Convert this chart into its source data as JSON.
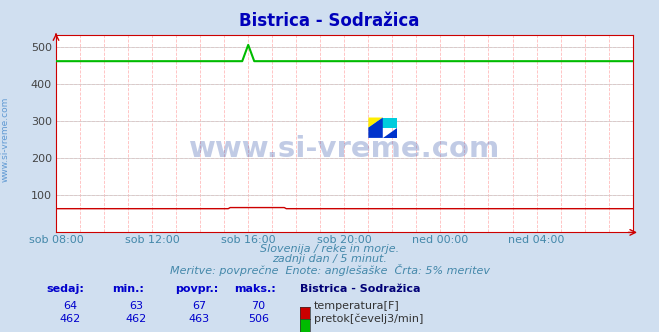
{
  "title": "Bistrica - Sodražica",
  "title_color": "#0000bb",
  "bg_color": "#d0dff0",
  "plot_bg_color": "#ffffff",
  "xlabel_color": "#4488aa",
  "ylabel_ticks": [
    100,
    200,
    300,
    400,
    500
  ],
  "ylim": [
    0,
    533
  ],
  "x_tick_labels": [
    "sob 08:00",
    "sob 12:00",
    "sob 16:00",
    "sob 20:00",
    "ned 00:00",
    "ned 04:00"
  ],
  "x_tick_positions": [
    0,
    4,
    8,
    12,
    16,
    20
  ],
  "subtitle1": "Slovenija / reke in morje.",
  "subtitle2": "zadnji dan / 5 minut.",
  "subtitle3": "Meritve: povprečne  Enote: anglešaške  Črta: 5% meritev",
  "subtitle_color": "#4488aa",
  "watermark": "www.si-vreme.com",
  "watermark_color": "#4488cc",
  "side_label": "www.si-vreme.com",
  "temp_color": "#cc0000",
  "flow_color": "#00bb00",
  "temp_base": 64,
  "flow_base": 462,
  "flow_spike_val": 506,
  "legend_sedaj_label": "sedaj:",
  "legend_min_label": "min.:",
  "legend_povpr_label": "povpr.:",
  "legend_maks_label": "maks.:",
  "legend_station": "Bistrica - Sodražica",
  "legend_color": "#0000cc",
  "temp_sedaj": 64,
  "temp_min": 63,
  "temp_povpr": 67,
  "temp_maks": 70,
  "flow_sedaj": 462,
  "flow_min": 462,
  "flow_povpr": 463,
  "flow_maks": 506,
  "temp_label": "temperatura[F]",
  "flow_label": "pretok[čevelj3/min]"
}
